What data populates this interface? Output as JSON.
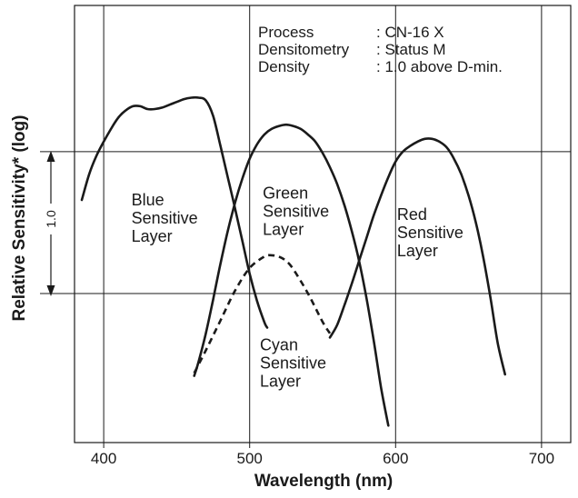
{
  "chart_data": {
    "type": "line",
    "title": "",
    "xlabel": "Wavelength (nm)",
    "ylabel": "Relative Sensitivity* (log)",
    "xlim": [
      380,
      720
    ],
    "ylim": [
      -2.05,
      1.03
    ],
    "grid": true,
    "x_ticks": [
      {
        "value": 400,
        "label": "400"
      },
      {
        "value": 500,
        "label": "500"
      },
      {
        "value": 600,
        "label": "600"
      },
      {
        "value": 700,
        "label": "700"
      }
    ],
    "y_gridlines": [
      0,
      -1
    ],
    "scale_indicator": {
      "label": "1.0",
      "from": -1,
      "to": 0
    },
    "info": [
      {
        "key": "Process",
        "value": ": CN-16 X"
      },
      {
        "key": "Densitometry",
        "value": ": Status M"
      },
      {
        "key": "Density",
        "value": ": 1.0 above D-min."
      }
    ],
    "series": [
      {
        "name": "Blue Sensitive Layer",
        "label_lines": [
          "Blue",
          "Sensitive",
          "Layer"
        ],
        "label_at": [
          419,
          -0.38
        ],
        "style": "solid",
        "x": [
          385,
          390,
          395,
          400,
          405,
          410,
          415,
          420,
          425,
          430,
          435,
          440,
          445,
          450,
          455,
          460,
          465,
          470,
          475,
          480,
          485,
          490,
          495,
          500,
          505,
          510,
          512
        ],
        "y": [
          -0.34,
          -0.16,
          -0.03,
          0.07,
          0.16,
          0.24,
          0.29,
          0.32,
          0.32,
          0.3,
          0.3,
          0.31,
          0.33,
          0.35,
          0.37,
          0.38,
          0.38,
          0.36,
          0.25,
          0.04,
          -0.18,
          -0.4,
          -0.63,
          -0.86,
          -1.05,
          -1.2,
          -1.24
        ]
      },
      {
        "name": "Green Sensitive Layer",
        "label_lines": [
          "Green",
          "Sensitive",
          "Layer"
        ],
        "label_at": [
          509,
          -0.33
        ],
        "style": "solid",
        "x": [
          462,
          465,
          470,
          475,
          480,
          485,
          490,
          495,
          500,
          505,
          510,
          515,
          520,
          525,
          530,
          535,
          540,
          545,
          550,
          555,
          560,
          565,
          570,
          575,
          580,
          585,
          590,
          595
        ],
        "y": [
          -1.58,
          -1.48,
          -1.28,
          -1.04,
          -0.79,
          -0.56,
          -0.36,
          -0.19,
          -0.05,
          0.05,
          0.12,
          0.16,
          0.18,
          0.19,
          0.18,
          0.16,
          0.12,
          0.07,
          -0.01,
          -0.11,
          -0.23,
          -0.38,
          -0.56,
          -0.77,
          -1.03,
          -1.33,
          -1.66,
          -1.93
        ]
      },
      {
        "name": "Red Sensitive Layer",
        "label_lines": [
          "Red",
          "Sensitive",
          "Layer"
        ],
        "label_at": [
          601,
          -0.48
        ],
        "style": "solid",
        "x": [
          555,
          560,
          565,
          570,
          575,
          580,
          585,
          590,
          595,
          600,
          605,
          610,
          615,
          620,
          625,
          630,
          635,
          640,
          645,
          650,
          655,
          660,
          665,
          670,
          675
        ],
        "y": [
          -1.31,
          -1.22,
          -1.08,
          -0.93,
          -0.77,
          -0.61,
          -0.45,
          -0.31,
          -0.18,
          -0.07,
          0.0,
          0.04,
          0.07,
          0.09,
          0.09,
          0.07,
          0.03,
          -0.05,
          -0.16,
          -0.31,
          -0.5,
          -0.74,
          -1.03,
          -1.35,
          -1.57
        ]
      },
      {
        "name": "Cyan Sensitive Layer",
        "label_lines": [
          "Cyan",
          "Sensitive",
          "Layer"
        ],
        "label_at": [
          507,
          -1.4
        ],
        "style": "dashed",
        "x": [
          462,
          470,
          480,
          490,
          500,
          510,
          515,
          520,
          525,
          530,
          540,
          550,
          555
        ],
        "y": [
          -1.56,
          -1.4,
          -1.19,
          -0.98,
          -0.82,
          -0.74,
          -0.73,
          -0.74,
          -0.77,
          -0.83,
          -1.0,
          -1.2,
          -1.28
        ]
      }
    ]
  }
}
